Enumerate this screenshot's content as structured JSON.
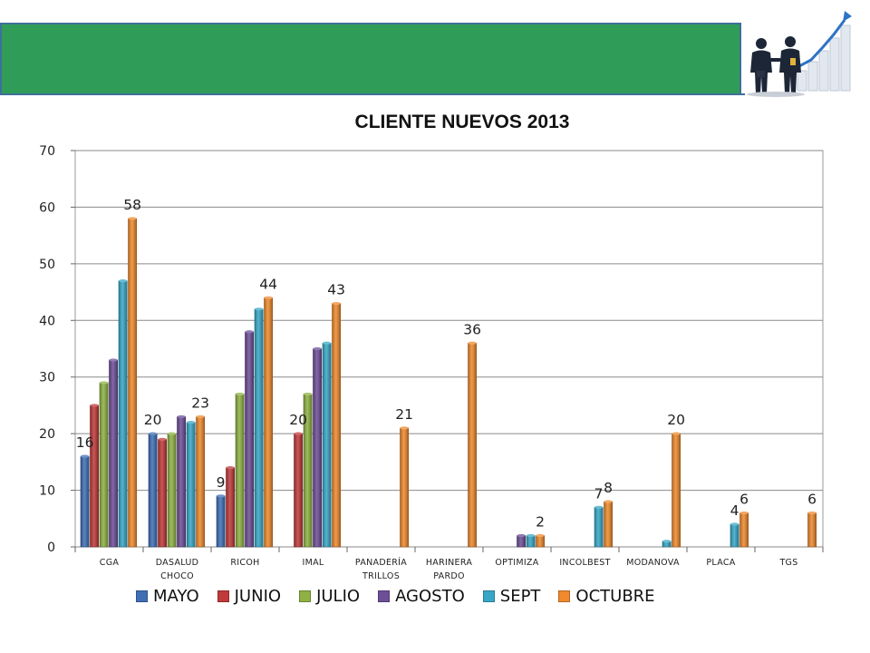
{
  "colors": {
    "banner": "#2f9d58",
    "banner_border": "#3e6f9a"
  },
  "logo": {
    "icon": "business-handshake-growth-icon"
  },
  "chart_data": {
    "type": "bar",
    "title": "CLIENTE  NUEVOS 2013",
    "xlabel": "",
    "ylabel": "",
    "ylim": [
      0,
      70
    ],
    "yticks": [
      0,
      10,
      20,
      30,
      40,
      50,
      60,
      70
    ],
    "grid": true,
    "legend_position": "bottom",
    "categories": [
      [
        "CGA"
      ],
      [
        "DASALUD",
        "CHOCO"
      ],
      [
        "RICOH"
      ],
      [
        "IMAL"
      ],
      [
        "PANADERÍA",
        "TRILLOS"
      ],
      [
        "HARINERA",
        "PARDO"
      ],
      [
        "OPTIMIZA"
      ],
      [
        "INCOLBEST"
      ],
      [
        "MODANOVA"
      ],
      [
        "PLACA"
      ],
      [
        "TGS"
      ]
    ],
    "series": [
      {
        "name": "MAYO",
        "color": "#3f6fb5",
        "values": [
          16,
          20,
          9,
          0,
          0,
          0,
          0,
          0,
          0,
          0,
          0
        ]
      },
      {
        "name": "JUNIO",
        "color": "#c0393b",
        "values": [
          25,
          19,
          14,
          20,
          0,
          0,
          0,
          0,
          0,
          0,
          0
        ]
      },
      {
        "name": "JULIO",
        "color": "#8fb144",
        "values": [
          29,
          20,
          27,
          27,
          0,
          0,
          0,
          0,
          0,
          0,
          0
        ]
      },
      {
        "name": "AGOSTO",
        "color": "#6d4f98",
        "values": [
          33,
          23,
          38,
          35,
          0,
          0,
          2,
          0,
          0,
          0,
          0
        ]
      },
      {
        "name": "SEPT",
        "color": "#38a7c6",
        "values": [
          47,
          22,
          42,
          36,
          0,
          0,
          2,
          7,
          1,
          4,
          0
        ]
      },
      {
        "name": "OCTUBRE",
        "color": "#ef8a2e",
        "values": [
          58,
          23,
          44,
          43,
          21,
          36,
          2,
          8,
          20,
          6,
          6
        ]
      }
    ],
    "data_labels": [
      {
        "category": 0,
        "series": 0,
        "text": "16"
      },
      {
        "category": 0,
        "series": 5,
        "text": "58"
      },
      {
        "category": 1,
        "series": 0,
        "text": "20"
      },
      {
        "category": 1,
        "series": 5,
        "text": "23"
      },
      {
        "category": 2,
        "series": 0,
        "text": "9"
      },
      {
        "category": 2,
        "series": 5,
        "text": "44"
      },
      {
        "category": 3,
        "series": 1,
        "text": "20"
      },
      {
        "category": 3,
        "series": 5,
        "text": "43"
      },
      {
        "category": 4,
        "series": 5,
        "text": "21"
      },
      {
        "category": 5,
        "series": 5,
        "text": "36"
      },
      {
        "category": 6,
        "series": 5,
        "text": "2"
      },
      {
        "category": 7,
        "series": 4,
        "text": "7"
      },
      {
        "category": 7,
        "series": 5,
        "text": "8"
      },
      {
        "category": 8,
        "series": 5,
        "text": "20"
      },
      {
        "category": 9,
        "series": 4,
        "text": "4"
      },
      {
        "category": 9,
        "series": 5,
        "text": "6"
      },
      {
        "category": 10,
        "series": 5,
        "text": "6"
      }
    ]
  }
}
